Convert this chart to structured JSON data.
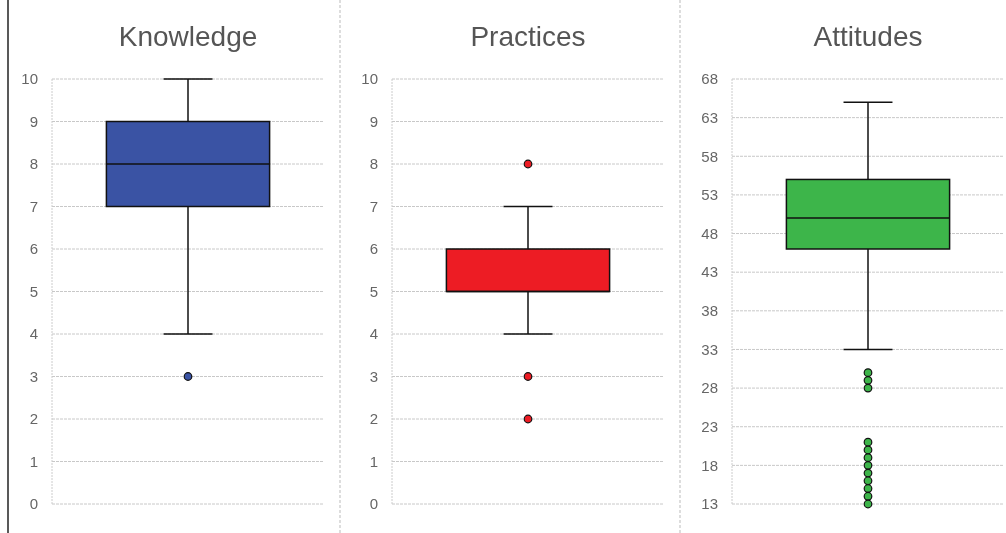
{
  "chart_data": [
    {
      "type": "box",
      "title": "Knowledge",
      "categories": [
        null
      ],
      "color": "#3a53a4",
      "boxes": [
        {
          "low": 4,
          "q1": 7,
          "median": 8,
          "q3": 9,
          "high": 10,
          "outliers": [
            3
          ]
        }
      ],
      "ylim": [
        0,
        10
      ],
      "yticks": [
        0,
        1,
        2,
        3,
        4,
        5,
        6,
        7,
        8,
        9,
        10
      ],
      "grid": "y"
    },
    {
      "type": "box",
      "title": "Practices",
      "categories": [
        null
      ],
      "color": "#ed1c24",
      "boxes": [
        {
          "low": 4,
          "q1": 5,
          "median": 5,
          "q3": 6,
          "high": 7,
          "outliers": [
            8,
            3,
            2
          ]
        }
      ],
      "ylim": [
        0,
        10
      ],
      "yticks": [
        0,
        1,
        2,
        3,
        4,
        5,
        6,
        7,
        8,
        9,
        10
      ],
      "grid": "y"
    },
    {
      "type": "box",
      "title": "Attitudes",
      "categories": [
        null
      ],
      "color": "#3db54a",
      "boxes": [
        {
          "low": 33,
          "q1": 46,
          "median": 50,
          "q3": 55,
          "high": 65,
          "outliers": [
            30,
            29,
            28,
            21,
            20,
            19,
            18,
            17,
            16,
            15,
            14,
            13
          ]
        }
      ],
      "ylim": [
        13,
        68
      ],
      "yticks": [
        13,
        18,
        23,
        28,
        33,
        38,
        43,
        48,
        53,
        58,
        63,
        68
      ],
      "grid": "y"
    }
  ]
}
